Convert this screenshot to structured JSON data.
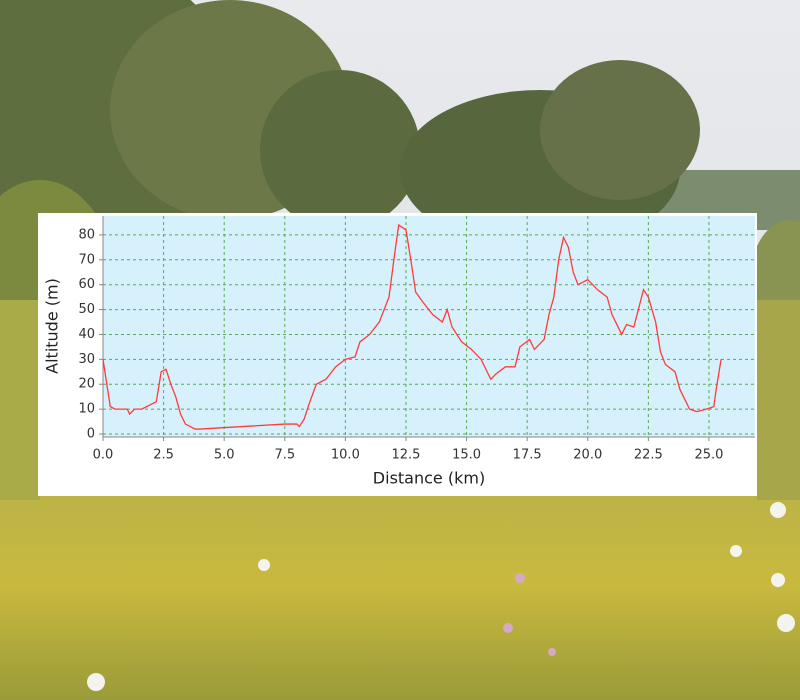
{
  "chart_data": {
    "type": "line",
    "x_label": "Distance (km)",
    "y_label": "Altitude (m)",
    "color": "#ff3b3b",
    "x": [
      0,
      0.3,
      0.5,
      1.0,
      1.1,
      1.3,
      1.6,
      2.0,
      2.2,
      2.4,
      2.6,
      2.8,
      3.0,
      3.2,
      3.4,
      3.6,
      3.8,
      4.0,
      7.5,
      8.0,
      8.1,
      8.3,
      8.5,
      8.8,
      9.2,
      9.6,
      10.0,
      10.4,
      10.6,
      11.0,
      11.4,
      11.8,
      12.0,
      12.2,
      12.5,
      12.7,
      12.9,
      13.2,
      13.6,
      14.0,
      14.2,
      14.4,
      14.8,
      15.2,
      15.6,
      16.0,
      16.2,
      16.6,
      17.0,
      17.2,
      17.6,
      17.8,
      18.2,
      18.4,
      18.6,
      18.8,
      19.0,
      19.2,
      19.4,
      19.6,
      20.0,
      20.4,
      20.8,
      21.0,
      21.4,
      21.6,
      21.9,
      22.3,
      22.5,
      22.8,
      23.0,
      23.2,
      23.6,
      23.8,
      24.2,
      24.5,
      24.9,
      25.2,
      25.3,
      25.5
    ],
    "values": [
      30,
      11,
      10,
      10,
      8,
      10,
      10,
      12,
      13,
      25,
      26,
      20,
      15,
      8,
      4,
      3,
      2,
      2,
      4,
      4,
      3,
      6,
      12,
      20,
      22,
      27,
      30,
      31,
      37,
      40,
      45,
      55,
      70,
      84,
      82,
      70,
      57,
      53,
      48,
      45,
      50,
      43,
      37,
      34,
      30,
      22,
      24,
      27,
      27,
      35,
      38,
      34,
      38,
      48,
      55,
      70,
      79,
      75,
      65,
      60,
      62,
      58,
      55,
      48,
      40,
      44,
      43,
      58,
      55,
      45,
      33,
      28,
      25,
      18,
      10,
      9,
      10,
      11,
      18,
      30
    ],
    "xlim": [
      0,
      26.9
    ],
    "ylim": [
      -1.2,
      87.6
    ],
    "xticks": [
      {
        "value": 0,
        "label": "0.0"
      },
      2.5,
      {
        "value": 5,
        "label": "5.0"
      },
      7.5,
      {
        "value": 10,
        "label": "10.0"
      },
      12.5,
      {
        "value": 15,
        "label": "15.0"
      },
      17.5,
      {
        "value": 20,
        "label": "20.0"
      },
      22.5,
      {
        "value": 25,
        "label": "25.0"
      }
    ],
    "yticks": [
      0,
      10,
      20,
      30,
      40,
      50,
      60,
      70,
      80
    ],
    "grid": true
  }
}
